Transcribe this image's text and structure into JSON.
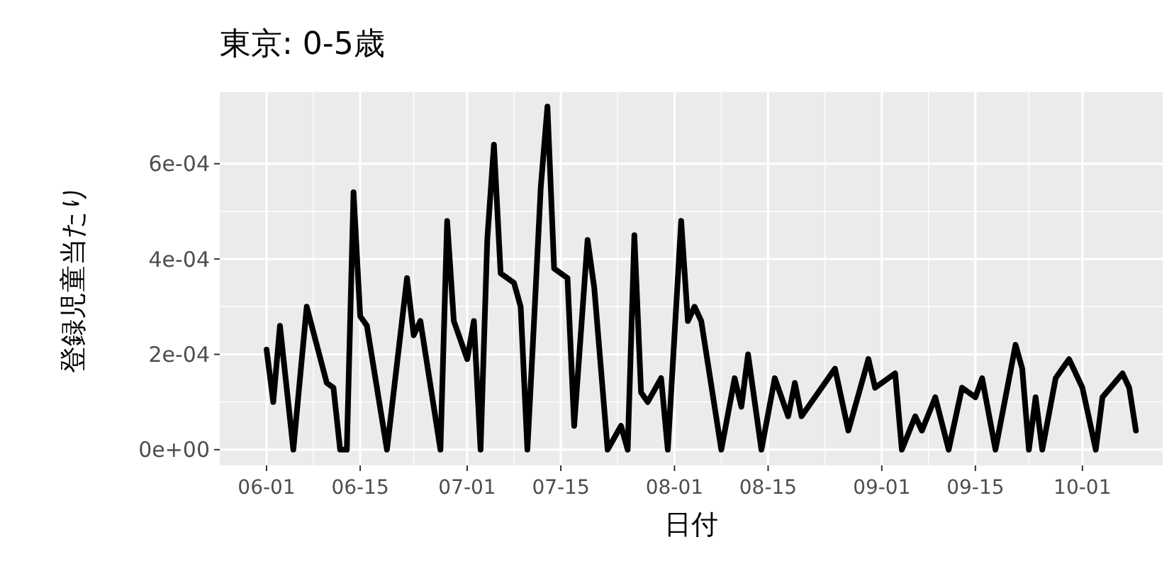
{
  "chart_data": {
    "type": "line",
    "title": "東京: 0-5歳",
    "xlabel": "日付",
    "ylabel": "登録児童当たり",
    "xlim": [
      "--05-25",
      "--10-13"
    ],
    "xticks": [
      {
        "value": "--06-01",
        "label": "06-01"
      },
      {
        "value": "--06-15",
        "label": "06-15"
      },
      {
        "value": "--07-01",
        "label": "07-01"
      },
      {
        "value": "--07-15",
        "label": "07-15"
      },
      {
        "value": "--08-01",
        "label": "08-01"
      },
      {
        "value": "--08-15",
        "label": "08-15"
      },
      {
        "value": "--09-01",
        "label": "09-01"
      },
      {
        "value": "--09-15",
        "label": "09-15"
      },
      {
        "value": "--10-01",
        "label": "10-01"
      }
    ],
    "ylim": [
      -3.3e-05,
      0.00075
    ],
    "yticks": [
      {
        "value": 0,
        "label": "0e+00"
      },
      {
        "value": 0.0002,
        "label": "2e-04"
      },
      {
        "value": 0.0004,
        "label": "4e-04"
      },
      {
        "value": 0.0006,
        "label": "6e-04"
      }
    ],
    "grid": true,
    "line_style": "solid",
    "marker": "none",
    "x": [
      "--06-01",
      "--06-02",
      "--06-03",
      "--06-05",
      "--06-07",
      "--06-10",
      "--06-11",
      "--06-12",
      "--06-13",
      "--06-14",
      "--06-15",
      "--06-16",
      "--06-19",
      "--06-22",
      "--06-23",
      "--06-24",
      "--06-27",
      "--06-28",
      "--06-29",
      "--07-01",
      "--07-02",
      "--07-03",
      "--07-04",
      "--07-05",
      "--07-06",
      "--07-08",
      "--07-09",
      "--07-10",
      "--07-11",
      "--07-12",
      "--07-13",
      "--07-14",
      "--07-16",
      "--07-17",
      "--07-19",
      "--07-20",
      "--07-22",
      "--07-24",
      "--07-25",
      "--07-26",
      "--07-27",
      "--07-28",
      "--07-30",
      "--07-31",
      "--08-02",
      "--08-03",
      "--08-04",
      "--08-05",
      "--08-08",
      "--08-10",
      "--08-11",
      "--08-12",
      "--08-14",
      "--08-16",
      "--08-18",
      "--08-19",
      "--08-20",
      "--08-25",
      "--08-27",
      "--08-30",
      "--08-31",
      "--09-03",
      "--09-04",
      "--09-06",
      "--09-07",
      "--09-09",
      "--09-11",
      "--09-13",
      "--09-15",
      "--09-16",
      "--09-18",
      "--09-21",
      "--09-22",
      "--09-23",
      "--09-24",
      "--09-25",
      "--09-27",
      "--09-29",
      "--10-01",
      "--10-03",
      "--10-04",
      "--10-07",
      "--10-08",
      "--10-09"
    ],
    "series": [
      {
        "color": "#000000",
        "values": [
          0.00021,
          0.0001,
          0.00026,
          0,
          0.0003,
          0.00014,
          0.00013,
          0,
          0,
          0.00054,
          0.00028,
          0.00026,
          0,
          0.00036,
          0.00024,
          0.00027,
          0,
          0.00048,
          0.00027,
          0.00019,
          0.00027,
          0,
          0.00044,
          0.00064,
          0.00037,
          0.00035,
          0.0003,
          0,
          0.00027,
          0.00055,
          0.00072,
          0.00038,
          0.00036,
          5e-05,
          0.00044,
          0.00034,
          0,
          5e-05,
          0,
          0.00045,
          0.00012,
          0.0001,
          0.00015,
          0,
          0.00048,
          0.00027,
          0.0003,
          0.00027,
          0,
          0.00015,
          9e-05,
          0.0002,
          0,
          0.00015,
          7e-05,
          0.00014,
          7e-05,
          0.00017,
          4e-05,
          0.00019,
          0.00013,
          0.00016,
          0,
          7e-05,
          4e-05,
          0.00011,
          0,
          0.00013,
          0.00011,
          0.00015,
          0,
          0.00022,
          0.00017,
          0,
          0.00011,
          0,
          0.00015,
          0.00019,
          0.00013,
          0,
          0.00011,
          0.00016,
          0.00013,
          4e-05
        ]
      }
    ]
  }
}
